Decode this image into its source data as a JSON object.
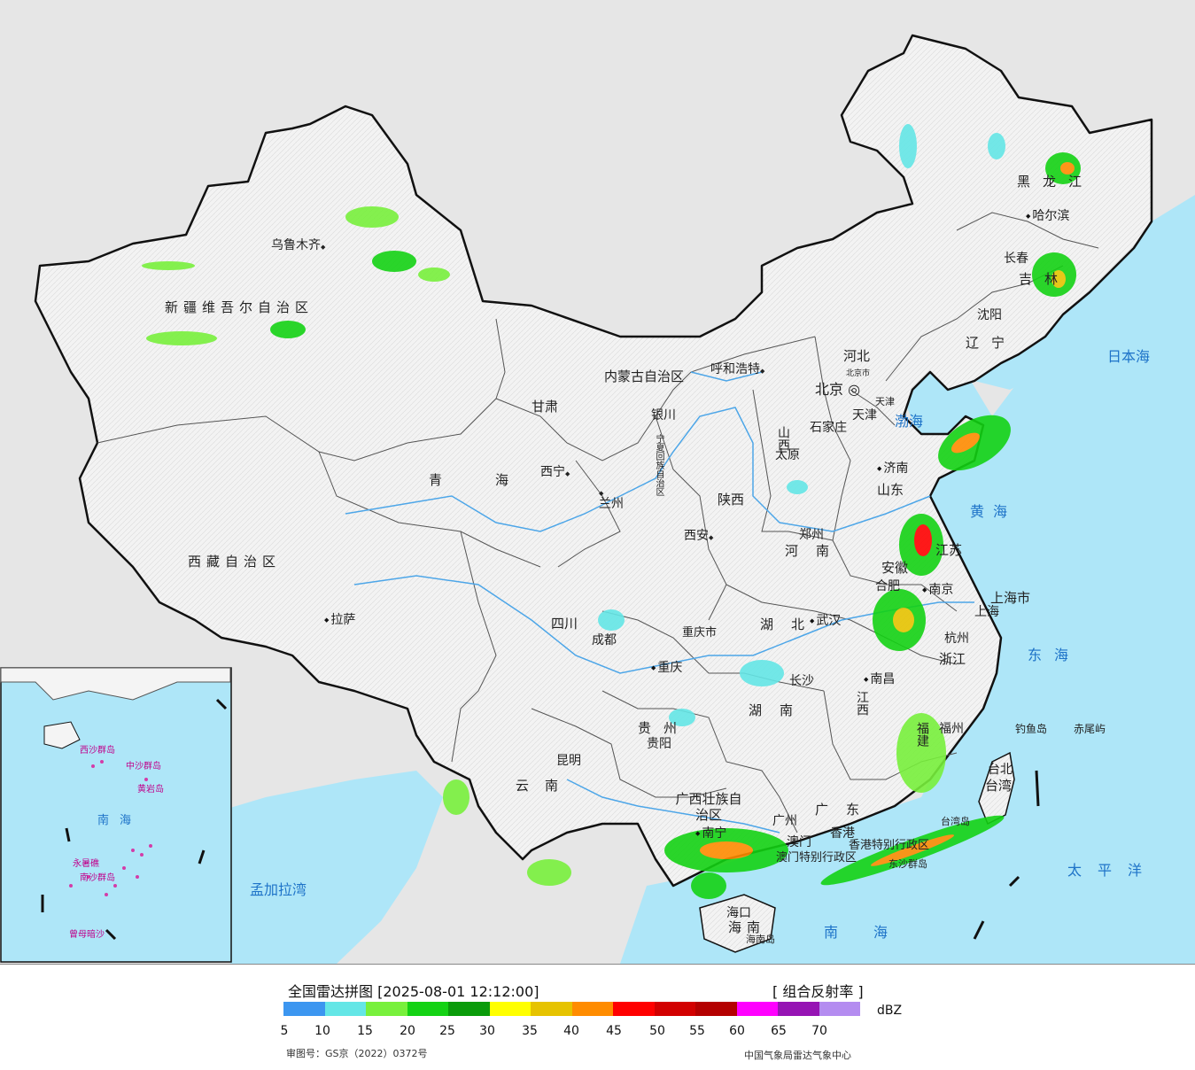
{
  "map": {
    "cities": [
      {
        "name": "乌鲁木齐",
        "marker": "left"
      },
      {
        "name": "拉萨"
      },
      {
        "name": "西宁"
      },
      {
        "name": "兰州"
      },
      {
        "name": "银川"
      },
      {
        "name": "呼和浩特"
      },
      {
        "name": "北京"
      },
      {
        "name": "天津"
      },
      {
        "name": "石家庄"
      },
      {
        "name": "太原"
      },
      {
        "name": "济南"
      },
      {
        "name": "郑州"
      },
      {
        "name": "西安"
      },
      {
        "name": "成都"
      },
      {
        "name": "重庆"
      },
      {
        "name": "武汉"
      },
      {
        "name": "合肥"
      },
      {
        "name": "南京"
      },
      {
        "name": "上海"
      },
      {
        "name": "杭州"
      },
      {
        "name": "南昌"
      },
      {
        "name": "长沙"
      },
      {
        "name": "贵阳"
      },
      {
        "name": "昆明"
      },
      {
        "name": "南宁"
      },
      {
        "name": "广州"
      },
      {
        "name": "澳门"
      },
      {
        "name": "香港"
      },
      {
        "name": "福州"
      },
      {
        "name": "台北"
      },
      {
        "name": "海口"
      },
      {
        "name": "沈阳"
      },
      {
        "name": "长春"
      },
      {
        "name": "哈尔滨"
      }
    ],
    "provinces": [
      "新疆维吾尔自治区",
      "西藏自治区",
      "青海",
      "甘肃",
      "内蒙古自治区",
      "宁夏回族自治区",
      "陕西",
      "山西",
      "河北",
      "北京市",
      "天津",
      "山东",
      "河南",
      "四川",
      "重庆市",
      "湖北",
      "安徽",
      "江苏",
      "上海市",
      "浙江",
      "江西",
      "湖南",
      "贵州",
      "云南",
      "广西壮族自治区",
      "广东",
      "福建",
      "台湾",
      "海南",
      "辽宁",
      "吉林",
      "黑龙江",
      "香港特别行政区",
      "澳门特别行政区"
    ],
    "seas": [
      "日本海",
      "渤海",
      "黄海",
      "东海",
      "太平洋",
      "南海",
      "孟加拉湾"
    ],
    "islands": [
      "钓鱼岛",
      "赤尾屿",
      "台湾岛",
      "海南岛",
      "东沙群岛"
    ],
    "inset": {
      "labels": [
        "南海",
        "西沙群岛",
        "中沙群岛",
        "南沙群岛",
        "黄岩岛",
        "永暑礁",
        "曾母暗沙"
      ]
    }
  },
  "legend": {
    "title": "全国雷达拼图 [2025-08-01 12:12:00]",
    "product": "[ 组合反射率 ]",
    "unit": "dBZ",
    "ticks": [
      "5",
      "10",
      "15",
      "20",
      "25",
      "30",
      "35",
      "40",
      "45",
      "50",
      "55",
      "60",
      "65",
      "70"
    ],
    "colors": [
      "#3c96f0",
      "#64e6e6",
      "#78f03c",
      "#14d214",
      "#0a9b0a",
      "#ffff00",
      "#e6c300",
      "#ff8c00",
      "#ff0000",
      "#d20000",
      "#b40000",
      "#ff00ff",
      "#9614b4",
      "#b48cf0"
    ],
    "map_approval": "审图号：GS京（2022）0372号",
    "source": "中国气象局雷达气象中心"
  },
  "colors": {
    "sea": "#aee6f8",
    "land_outside": "#e6e6e6",
    "china_land": "#f4f4f4",
    "border": "#111111",
    "river": "#4da6e8"
  }
}
